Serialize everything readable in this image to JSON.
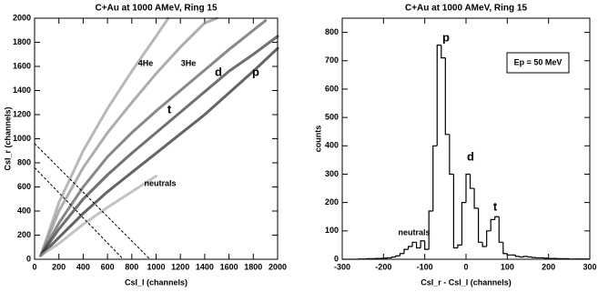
{
  "chart_data": [
    {
      "type": "line",
      "title": "C+Au at 1000 AMeV, Ring 15",
      "xlabel": "CsI_l (channels)",
      "ylabel": "CsI_r (channels)",
      "xlim": [
        0,
        2000
      ],
      "ylim": [
        0,
        2000
      ],
      "xticks": [
        0,
        200,
        400,
        600,
        800,
        1000,
        1200,
        1400,
        1600,
        1800,
        2000
      ],
      "yticks": [
        0,
        200,
        400,
        600,
        800,
        1000,
        1200,
        1400,
        1600,
        1800,
        2000
      ],
      "annotations": [
        "4He",
        "3He",
        "d",
        "p",
        "t",
        "neutrals"
      ],
      "series": [
        {
          "color": "#9a9a9a",
          "x": [
            50,
            200,
            400,
            600,
            800,
            1000,
            1100
          ],
          "values": [
            30,
            470,
            900,
            1250,
            1560,
            1850,
            2000
          ]
        },
        {
          "color": "#8a8a8a",
          "x": [
            50,
            200,
            400,
            600,
            800,
            1000,
            1200,
            1400,
            1500
          ],
          "values": [
            30,
            400,
            760,
            1050,
            1300,
            1540,
            1760,
            1960,
            2000
          ]
        },
        {
          "color": "#555555",
          "x": [
            50,
            200,
            400,
            600,
            800,
            1000,
            1200,
            1400,
            1600,
            1800,
            1900
          ],
          "values": [
            30,
            300,
            600,
            850,
            1050,
            1230,
            1400,
            1570,
            1740,
            1900,
            1980
          ]
        },
        {
          "color": "#333333",
          "x": [
            50,
            200,
            400,
            600,
            800,
            1000,
            1200,
            1400,
            1600,
            1800,
            2000
          ],
          "values": [
            30,
            250,
            500,
            700,
            880,
            1050,
            1220,
            1390,
            1560,
            1700,
            1850
          ]
        },
        {
          "color": "#222222",
          "x": [
            50,
            200,
            400,
            600,
            800,
            1000,
            1200,
            1400,
            1600,
            1800,
            2000
          ],
          "values": [
            30,
            180,
            380,
            560,
            720,
            880,
            1040,
            1200,
            1380,
            1560,
            1750
          ]
        },
        {
          "color": "#aaaaaa",
          "x": [
            50,
            200,
            400,
            600,
            800,
            1000
          ],
          "values": [
            30,
            130,
            290,
            430,
            560,
            690
          ]
        },
        {
          "color": "#000000",
          "dash": true,
          "x": [
            0,
            950
          ],
          "values": [
            960,
            0
          ]
        },
        {
          "color": "#000000",
          "dash": true,
          "x": [
            0,
            730
          ],
          "values": [
            760,
            0
          ]
        }
      ]
    },
    {
      "type": "histogram",
      "title": "C+Au at 1000 AMeV, Ring 15",
      "xlabel": "CsI_r - CsI_l (channels)",
      "ylabel": "counts",
      "xlim": [
        -300,
        300
      ],
      "ylim": [
        0,
        850
      ],
      "xticks": [
        -300,
        -200,
        -100,
        0,
        100,
        200,
        300
      ],
      "yticks": [
        0,
        100,
        200,
        300,
        400,
        500,
        600,
        700,
        800
      ],
      "annotations": [
        "p",
        "d",
        "t",
        "neutrals",
        "Ep = 50 MeV"
      ],
      "color": "#000000",
      "bins": [
        -300,
        -290,
        -280,
        -270,
        -260,
        -250,
        -240,
        -230,
        -220,
        -210,
        -200,
        -190,
        -180,
        -170,
        -160,
        -150,
        -140,
        -130,
        -120,
        -110,
        -100,
        -90,
        -80,
        -70,
        -60,
        -50,
        -40,
        -30,
        -20,
        -10,
        0,
        10,
        20,
        30,
        40,
        50,
        60,
        70,
        80,
        90,
        100,
        110,
        120,
        130,
        140,
        150,
        160,
        170,
        180,
        190,
        200,
        210,
        220,
        230,
        240,
        250,
        260,
        270,
        280,
        290,
        300
      ],
      "values": [
        0,
        0,
        0,
        0,
        1,
        1,
        2,
        2,
        3,
        3,
        4,
        5,
        8,
        12,
        20,
        35,
        45,
        60,
        40,
        65,
        35,
        170,
        400,
        755,
        710,
        440,
        300,
        40,
        50,
        200,
        300,
        250,
        180,
        60,
        45,
        100,
        140,
        150,
        60,
        20,
        15,
        15,
        10,
        8,
        10,
        8,
        6,
        5,
        5,
        4,
        3,
        3,
        2,
        2,
        2,
        1,
        1,
        1,
        1,
        1
      ]
    }
  ]
}
